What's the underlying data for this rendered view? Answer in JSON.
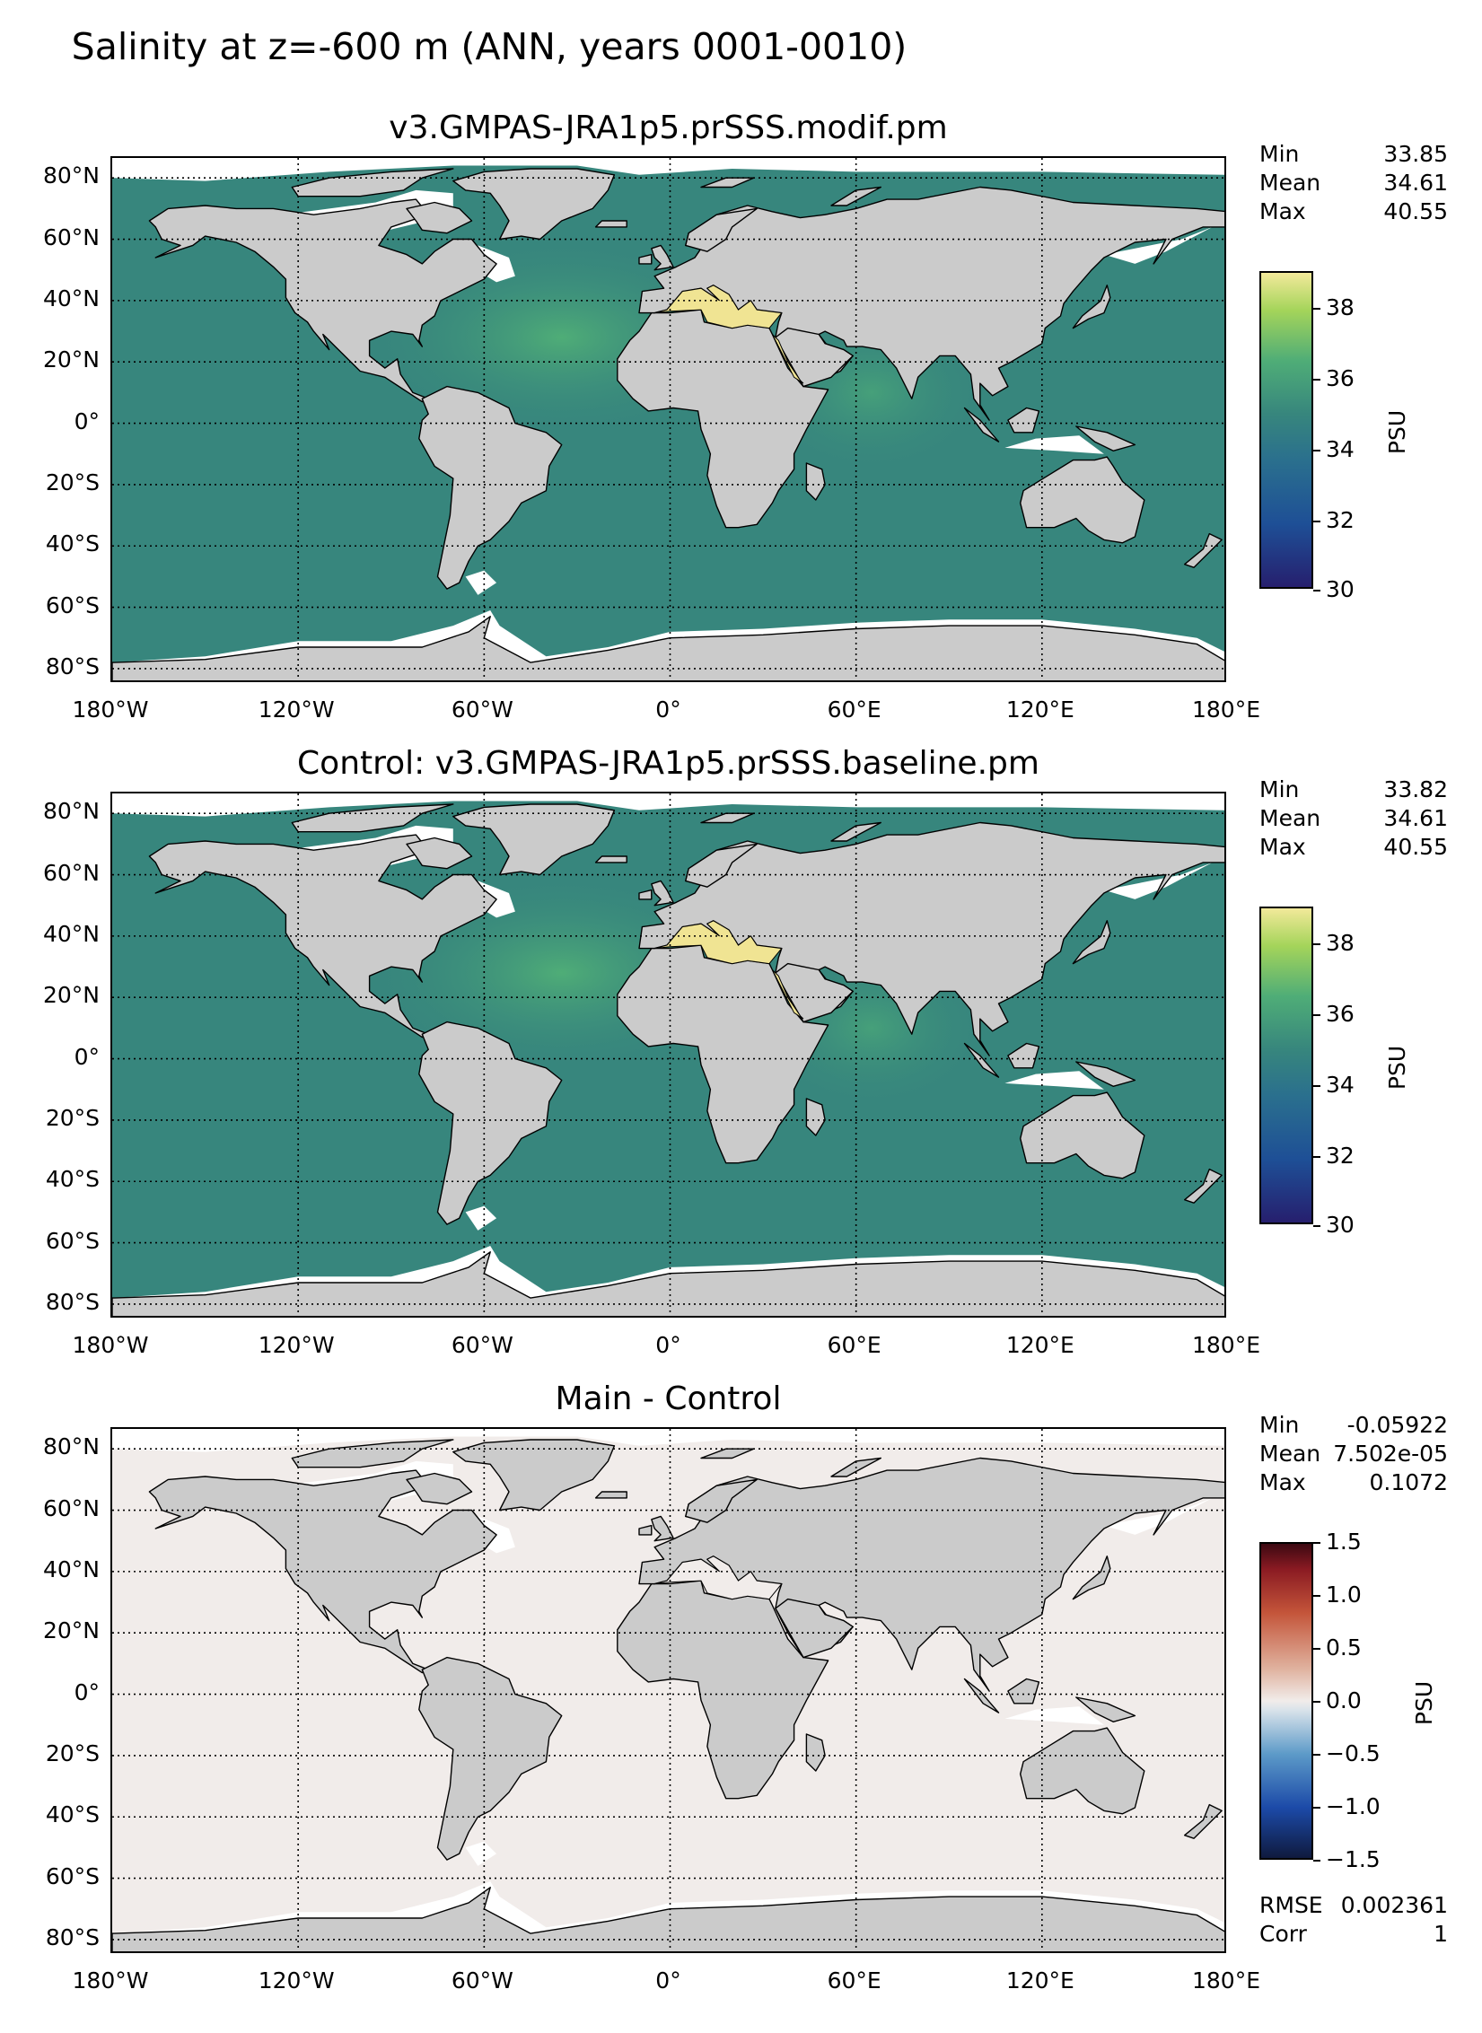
{
  "figure_title": "Salinity at z=-600 m (ANN, years 0001-0010)",
  "colors": {
    "land": "#cbcbcb",
    "ice": "#ffffff",
    "ocean_main": "#37867d",
    "ocean_warm": "#4fad77",
    "med": "#f0e493",
    "diff_ocean": "#f1ecea"
  },
  "lat_ticks": [
    "80°N",
    "60°N",
    "40°N",
    "20°N",
    "0°",
    "20°S",
    "40°S",
    "60°S",
    "80°S"
  ],
  "lon_ticks": [
    "180°W",
    "120°W",
    "60°W",
    "0°",
    "60°E",
    "120°E",
    "180°E"
  ],
  "panels": [
    {
      "title": "v3.GMPAS-JRA1p5.prSSS.modif.pm",
      "stats": [
        {
          "label": "Min",
          "value": "33.85"
        },
        {
          "label": "Mean",
          "value": "34.61"
        },
        {
          "label": "Max",
          "value": "40.55"
        }
      ],
      "colorbar": {
        "label": "PSU",
        "ticks": [
          "38",
          "36",
          "34",
          "32",
          "30"
        ],
        "cmap": "haline"
      },
      "extra": []
    },
    {
      "title": "Control: v3.GMPAS-JRA1p5.prSSS.baseline.pm",
      "stats": [
        {
          "label": "Min",
          "value": "33.82"
        },
        {
          "label": "Mean",
          "value": "34.61"
        },
        {
          "label": "Max",
          "value": "40.55"
        }
      ],
      "colorbar": {
        "label": "PSU",
        "ticks": [
          "38",
          "36",
          "34",
          "32",
          "30"
        ],
        "cmap": "haline"
      },
      "extra": []
    },
    {
      "title": "Main - Control",
      "stats": [
        {
          "label": "Min",
          "value": "-0.05922"
        },
        {
          "label": "Mean",
          "value": "7.502e-05"
        },
        {
          "label": "Max",
          "value": "0.1072"
        }
      ],
      "colorbar": {
        "label": "PSU",
        "ticks": [
          "1.5",
          "1.0",
          "0.5",
          "0.0",
          "−0.5",
          "−1.0",
          "−1.5"
        ],
        "cmap": "balance"
      },
      "extra": [
        {
          "label": "RMSE",
          "value": "0.002361"
        },
        {
          "label": "Corr",
          "value": "1"
        }
      ]
    }
  ]
}
